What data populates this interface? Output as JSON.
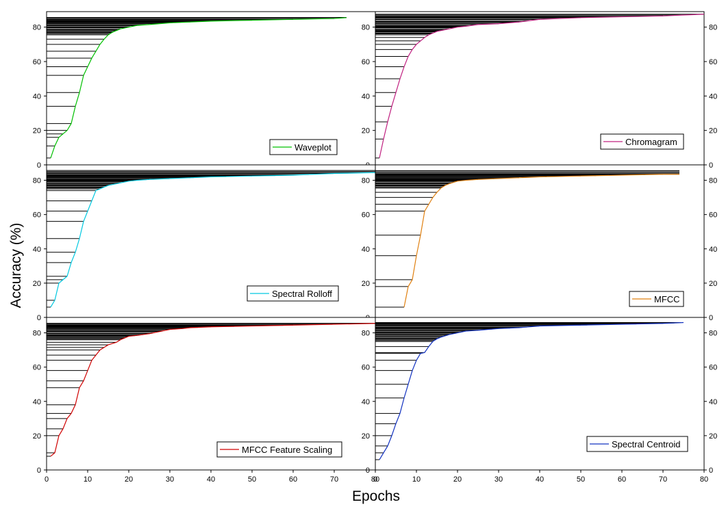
{
  "figure": {
    "ylabel": "Accuracy (%)",
    "xlabel": "Epochs"
  },
  "chart_data": [
    {
      "type": "line",
      "legend": "Waveplot",
      "color": "#00c000",
      "legend_position": "bottom-right",
      "xlim": [
        0,
        80
      ],
      "ylim": [
        0,
        89
      ],
      "xticks": [],
      "yticks_left": [
        "0",
        "20",
        "40",
        "60",
        "80"
      ],
      "yticks_right": [],
      "x": [
        1,
        2,
        3,
        4,
        5,
        6,
        7,
        8,
        9,
        10,
        11,
        12,
        13,
        14,
        15,
        16,
        17,
        18,
        20,
        22,
        25,
        30,
        35,
        40,
        50,
        60,
        70,
        73
      ],
      "y": [
        4,
        11,
        16,
        18,
        20,
        24,
        34,
        42,
        52,
        57,
        62,
        66,
        70,
        73,
        75.5,
        77,
        78,
        79,
        80,
        81,
        81.5,
        82.5,
        83,
        83.5,
        84,
        84.5,
        85,
        85.5
      ]
    },
    {
      "type": "line",
      "legend": "Chromagram",
      "color": "#c02080",
      "legend_position": "bottom-right",
      "xlim": [
        0,
        80
      ],
      "ylim": [
        0,
        89
      ],
      "xticks": [],
      "yticks_left": [
        "0",
        "20",
        "40",
        "60",
        "80"
      ],
      "yticks_right": [
        "0",
        "20",
        "40",
        "60",
        "80"
      ],
      "x": [
        1,
        2,
        3,
        4,
        5,
        6,
        7,
        8,
        9,
        10,
        11,
        12,
        13,
        14,
        15,
        16,
        18,
        20,
        22,
        25,
        30,
        35,
        40,
        50,
        60,
        70,
        75,
        80
      ],
      "y": [
        4,
        15,
        25,
        34,
        42,
        50,
        57,
        63,
        67,
        70,
        72,
        74,
        75.5,
        76.5,
        77.5,
        78,
        79,
        80,
        80.5,
        81.5,
        82,
        83,
        84.5,
        85.5,
        86,
        86.5,
        87,
        87.5
      ]
    },
    {
      "type": "line",
      "legend": "Spectral Rolloff",
      "color": "#00c8e0",
      "legend_position": "bottom-right",
      "xlim": [
        0,
        80
      ],
      "ylim": [
        0,
        89
      ],
      "xticks": [],
      "yticks_left": [
        "0",
        "20",
        "40",
        "60",
        "80"
      ],
      "yticks_right": [],
      "x": [
        1,
        2,
        3,
        4,
        5,
        6,
        7,
        8,
        9,
        10,
        11,
        12,
        13,
        14,
        15,
        16,
        18,
        20,
        22,
        25,
        30,
        35,
        40,
        50,
        60,
        70,
        80
      ],
      "y": [
        6,
        10,
        20,
        22,
        24,
        32,
        38,
        46,
        56,
        62,
        68,
        74,
        75,
        76,
        77,
        77.5,
        78.5,
        79.5,
        80,
        80.5,
        81,
        81.5,
        82,
        82.5,
        83,
        84,
        84.5
      ]
    },
    {
      "type": "line",
      "legend": "MFCC",
      "color": "#e08010",
      "legend_position": "bottom-right",
      "xlim": [
        0,
        80
      ],
      "ylim": [
        0,
        89
      ],
      "xticks": [],
      "yticks_left": [
        "0",
        "20",
        "40",
        "60",
        "80"
      ],
      "yticks_right": [
        "0",
        "20",
        "40",
        "60",
        "80"
      ],
      "x": [
        7,
        8,
        9,
        10,
        11,
        12,
        13,
        14,
        15,
        16,
        17,
        18,
        20,
        22,
        25,
        30,
        35,
        40,
        50,
        60,
        70,
        74
      ],
      "y": [
        6,
        18,
        22,
        36,
        48,
        62,
        66,
        70,
        73,
        75.5,
        77,
        78,
        79.5,
        80,
        80.5,
        81,
        81.5,
        82,
        82.5,
        83,
        83.5,
        83.5
      ]
    },
    {
      "type": "line",
      "legend": "MFCC Feature Scaling",
      "color": "#d00000",
      "legend_position": "bottom-right",
      "xlim": [
        0,
        80
      ],
      "ylim": [
        0,
        89
      ],
      "xticks": [
        "0",
        "10",
        "20",
        "30",
        "40",
        "50",
        "60",
        "70",
        "80"
      ],
      "yticks_left": [
        "0",
        "20",
        "40",
        "60",
        "80"
      ],
      "yticks_right": [],
      "x": [
        1,
        2,
        3,
        4,
        5,
        6,
        7,
        8,
        9,
        10,
        11,
        12,
        13,
        14,
        15,
        17,
        18,
        19,
        20,
        22,
        25,
        28,
        30,
        33,
        35,
        40,
        50,
        60,
        70,
        80
      ],
      "y": [
        8,
        10,
        20,
        24,
        30,
        33,
        38,
        48,
        52,
        58,
        64,
        67,
        70,
        71.5,
        73,
        74.5,
        76,
        77,
        78,
        78.5,
        79.5,
        81,
        82,
        82.5,
        83,
        83.5,
        84,
        84.5,
        85,
        85.5
      ]
    },
    {
      "type": "line",
      "legend": "Spectral Centroid",
      "color": "#1030c0",
      "legend_position": "bottom-right",
      "xlim": [
        0,
        80
      ],
      "ylim": [
        0,
        89
      ],
      "xticks": [
        "0",
        "10",
        "20",
        "30",
        "40",
        "50",
        "60",
        "70",
        "80"
      ],
      "yticks_left": [
        "0",
        "20",
        "40",
        "60",
        "80"
      ],
      "yticks_right": [
        "0",
        "20",
        "40",
        "60",
        "80"
      ],
      "x": [
        1,
        2,
        3,
        4,
        5,
        6,
        7,
        8,
        9,
        10,
        11,
        12,
        13,
        14,
        15,
        16,
        18,
        20,
        22,
        25,
        30,
        35,
        40,
        50,
        60,
        70,
        75
      ],
      "y": [
        6,
        10,
        14,
        20,
        27,
        33,
        42,
        50,
        58,
        64,
        68,
        68.5,
        72,
        75,
        76.5,
        77.5,
        79,
        80,
        81,
        81.5,
        82.5,
        83,
        84,
        84.5,
        85,
        85.5,
        86
      ]
    }
  ]
}
